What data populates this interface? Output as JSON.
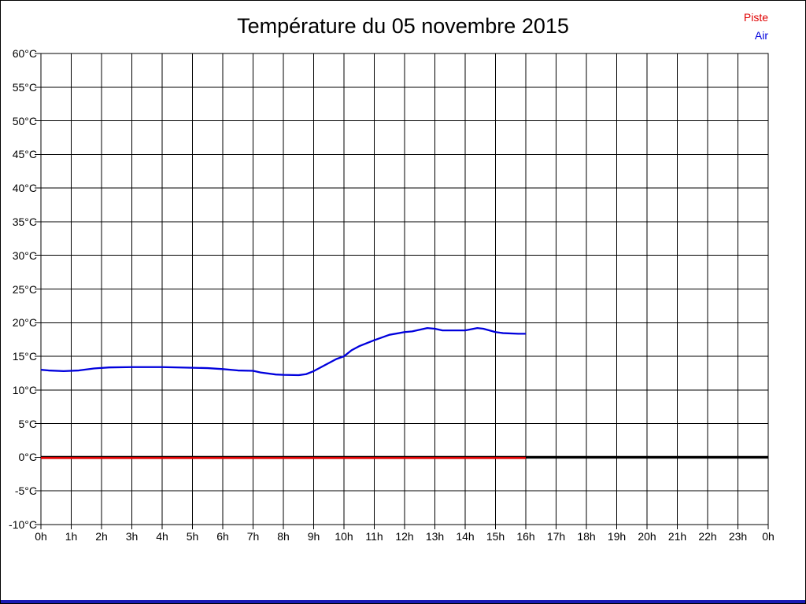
{
  "page": {
    "background": "#ffffff",
    "frame_border_color": "#000000",
    "bottom_bar_color": "#1b1bb4"
  },
  "header": {
    "title": "Température du 05 novembre 2015"
  },
  "legend": {
    "items": [
      {
        "label": "Piste",
        "color": "#e00000"
      },
      {
        "label": "Air",
        "color": "#0000dd"
      }
    ]
  },
  "chart_data": {
    "type": "line",
    "title": "Température du 05 novembre 2015",
    "xlabel": "",
    "ylabel": "",
    "x_unit": "hour of day",
    "xlim": [
      0,
      24
    ],
    "ylim": [
      -10,
      60
    ],
    "y_tick_step": 5,
    "x_tick_labels": [
      "0h",
      "1h",
      "2h",
      "3h",
      "4h",
      "5h",
      "6h",
      "7h",
      "8h",
      "9h",
      "10h",
      "11h",
      "12h",
      "13h",
      "14h",
      "15h",
      "16h",
      "17h",
      "18h",
      "19h",
      "20h",
      "21h",
      "22h",
      "23h",
      "0h"
    ],
    "y_tick_labels": [
      "-10°C",
      "-5°C",
      "0°C",
      "5°C",
      "10°C",
      "15°C",
      "20°C",
      "25°C",
      "30°C",
      "35°C",
      "40°C",
      "45°C",
      "50°C",
      "55°C",
      "60°C"
    ],
    "grid": {
      "visible": true,
      "color": "#000000",
      "full_grid": true,
      "legend_position": "top-right"
    },
    "zero_line": {
      "y": 0,
      "color": "#000000",
      "x_range": [
        0,
        24
      ]
    },
    "series": [
      {
        "name": "Piste",
        "color": "#e00000",
        "points": [
          [
            0,
            0
          ],
          [
            16,
            0
          ]
        ]
      },
      {
        "name": "Air",
        "color": "#0000dd",
        "points": [
          [
            0,
            13.0
          ],
          [
            0.25,
            12.9
          ],
          [
            0.75,
            12.8
          ],
          [
            1.25,
            12.9
          ],
          [
            1.75,
            13.2
          ],
          [
            2.25,
            13.35
          ],
          [
            3,
            13.4
          ],
          [
            4,
            13.4
          ],
          [
            5,
            13.3
          ],
          [
            5.5,
            13.25
          ],
          [
            6,
            13.1
          ],
          [
            6.5,
            12.9
          ],
          [
            7,
            12.85
          ],
          [
            7.25,
            12.6
          ],
          [
            7.75,
            12.3
          ],
          [
            8,
            12.25
          ],
          [
            8.5,
            12.2
          ],
          [
            8.75,
            12.35
          ],
          [
            9,
            12.8
          ],
          [
            9.25,
            13.4
          ],
          [
            9.5,
            14.0
          ],
          [
            9.75,
            14.6
          ],
          [
            10,
            15.0
          ],
          [
            10.25,
            15.9
          ],
          [
            10.5,
            16.5
          ],
          [
            11,
            17.4
          ],
          [
            11.5,
            18.2
          ],
          [
            12,
            18.6
          ],
          [
            12.25,
            18.7
          ],
          [
            12.75,
            19.2
          ],
          [
            13,
            19.1
          ],
          [
            13.25,
            18.85
          ],
          [
            14,
            18.85
          ],
          [
            14.4,
            19.2
          ],
          [
            14.6,
            19.1
          ],
          [
            15,
            18.6
          ],
          [
            15.25,
            18.45
          ],
          [
            15.75,
            18.35
          ],
          [
            16,
            18.35
          ]
        ]
      }
    ]
  }
}
